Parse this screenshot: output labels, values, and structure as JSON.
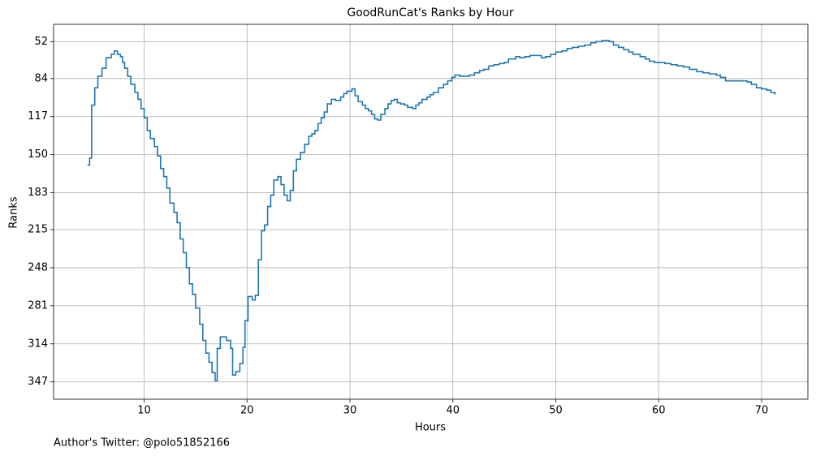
{
  "chart_data": {
    "type": "step",
    "title": "GoodRunCat's Ranks by Hour",
    "xlabel": "Hours",
    "ylabel": "Ranks",
    "footer": "Author's Twitter: @polo51852166",
    "color": "#1f77b4",
    "grid": true,
    "xlim": [
      1.2,
      74.5
    ],
    "xticks": [
      10,
      20,
      30,
      40,
      50,
      60,
      70
    ],
    "ylim": [
      362,
      37
    ],
    "yticks": [
      52,
      84,
      117,
      150,
      183,
      215,
      248,
      281,
      314,
      347
    ],
    "x": [
      4.5,
      4.7,
      4.9,
      5.2,
      5.5,
      5.9,
      6.3,
      6.8,
      7.1,
      7.4,
      7.7,
      7.9,
      8.1,
      8.4,
      8.7,
      9.1,
      9.4,
      9.7,
      10.0,
      10.3,
      10.6,
      11.0,
      11.3,
      11.6,
      11.9,
      12.2,
      12.5,
      12.9,
      13.2,
      13.5,
      13.8,
      14.1,
      14.4,
      14.7,
      15.0,
      15.4,
      15.7,
      16.0,
      16.3,
      16.6,
      16.9,
      17.1,
      17.4,
      17.7,
      18.0,
      18.4,
      18.6,
      18.9,
      19.3,
      19.6,
      19.8,
      20.1,
      20.5,
      20.8,
      21.1,
      21.4,
      21.7,
      22.0,
      22.3,
      22.6,
      23.0,
      23.3,
      23.6,
      23.9,
      24.2,
      24.5,
      24.8,
      25.2,
      25.6,
      26.0,
      26.3,
      26.6,
      26.9,
      27.2,
      27.5,
      27.8,
      28.2,
      28.6,
      29.1,
      29.4,
      29.7,
      30.2,
      30.5,
      30.8,
      31.2,
      31.5,
      31.8,
      32.1,
      32.4,
      32.7,
      33.0,
      33.4,
      33.7,
      34.0,
      34.3,
      34.6,
      34.9,
      35.3,
      35.6,
      36.1,
      36.4,
      36.7,
      37.0,
      37.5,
      37.8,
      38.1,
      38.6,
      39.1,
      39.5,
      39.9,
      40.2,
      40.7,
      41.1,
      41.6,
      42.1,
      42.6,
      43.0,
      43.5,
      44.0,
      44.5,
      45.0,
      45.4,
      46.1,
      46.5,
      47.0,
      47.5,
      48.1,
      48.6,
      49.0,
      49.5,
      50.0,
      50.6,
      51.1,
      51.6,
      52.2,
      52.8,
      53.4,
      53.9,
      54.5,
      55.2,
      55.6,
      56.1,
      56.6,
      57.1,
      57.5,
      58.2,
      58.7,
      59.1,
      59.6,
      60.1,
      60.6,
      61.2,
      61.8,
      62.4,
      63.0,
      63.7,
      64.3,
      64.9,
      65.6,
      66.0,
      66.5,
      67.0,
      67.8,
      68.6,
      69.0,
      69.5,
      70.0,
      70.5,
      70.9,
      71.3
    ],
    "values": [
      159,
      153,
      107,
      92,
      82,
      75,
      66,
      63,
      60,
      63,
      65,
      70,
      75,
      82,
      89,
      96,
      102,
      110,
      118,
      129,
      136,
      143,
      151,
      162,
      169,
      179,
      192,
      200,
      209,
      223,
      235,
      248,
      262,
      271,
      283,
      297,
      311,
      322,
      330,
      339,
      346,
      318,
      308,
      308,
      311,
      318,
      341,
      338,
      331,
      317,
      294,
      273,
      276,
      272,
      241,
      216,
      211,
      195,
      185,
      172,
      169,
      176,
      185,
      190,
      181,
      164,
      154,
      148,
      141,
      134,
      132,
      129,
      123,
      118,
      113,
      106,
      102,
      103,
      100,
      97,
      95,
      93,
      99,
      104,
      107,
      110,
      112,
      115,
      119,
      120,
      115,
      110,
      106,
      103,
      102,
      105,
      106,
      107,
      109,
      110,
      107,
      105,
      102,
      100,
      98,
      96,
      92,
      89,
      86,
      83,
      81,
      82,
      82,
      81,
      79,
      77,
      76,
      73,
      72,
      71,
      70,
      67,
      65,
      66,
      65,
      64,
      64,
      66,
      65,
      63,
      61,
      60,
      58,
      57,
      56,
      55,
      53,
      52,
      51,
      52,
      55,
      57,
      59,
      61,
      63,
      65,
      67,
      69,
      70,
      70,
      71,
      72,
      73,
      74,
      76,
      78,
      79,
      80,
      81,
      83,
      86,
      86,
      86,
      87,
      89,
      92,
      93,
      94,
      96,
      98
    ]
  }
}
